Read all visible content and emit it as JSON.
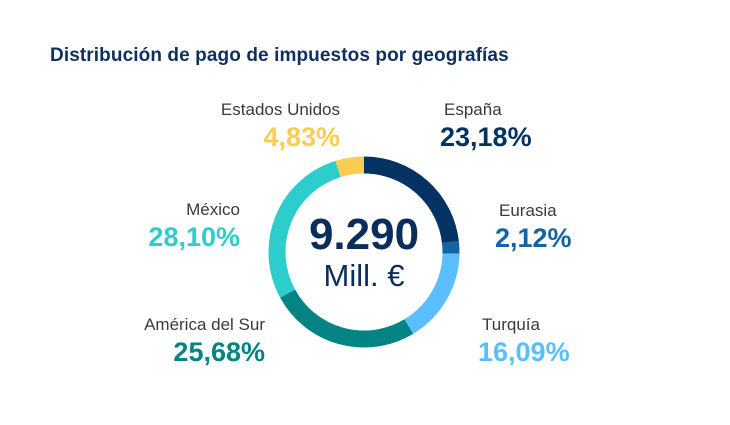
{
  "title": "Distribución de pago de impuestos por geografías",
  "colors": {
    "España": "#043263",
    "Eurasia": "#1464a5",
    "Turquía": "#5bbeff",
    "América del Sur": "#028484",
    "México": "#2dcccd",
    "Estados Unidos": "#f8cd51"
  },
  "chart_data": {
    "type": "pie",
    "style": "donut",
    "center_value": "9.290",
    "center_unit": "Mill. €",
    "slices": [
      {
        "label": "España",
        "value": 23.18,
        "value_text": "23,18%"
      },
      {
        "label": "Eurasia",
        "value": 2.12,
        "value_text": "2,12%"
      },
      {
        "label": "Turquía",
        "value": 16.09,
        "value_text": "16,09%"
      },
      {
        "label": "América del Sur",
        "value": 25.68,
        "value_text": "25,68%"
      },
      {
        "label": "México",
        "value": 28.1,
        "value_text": "28,10%"
      },
      {
        "label": "Estados Unidos",
        "value": 4.83,
        "value_text": "4,83%"
      }
    ]
  }
}
